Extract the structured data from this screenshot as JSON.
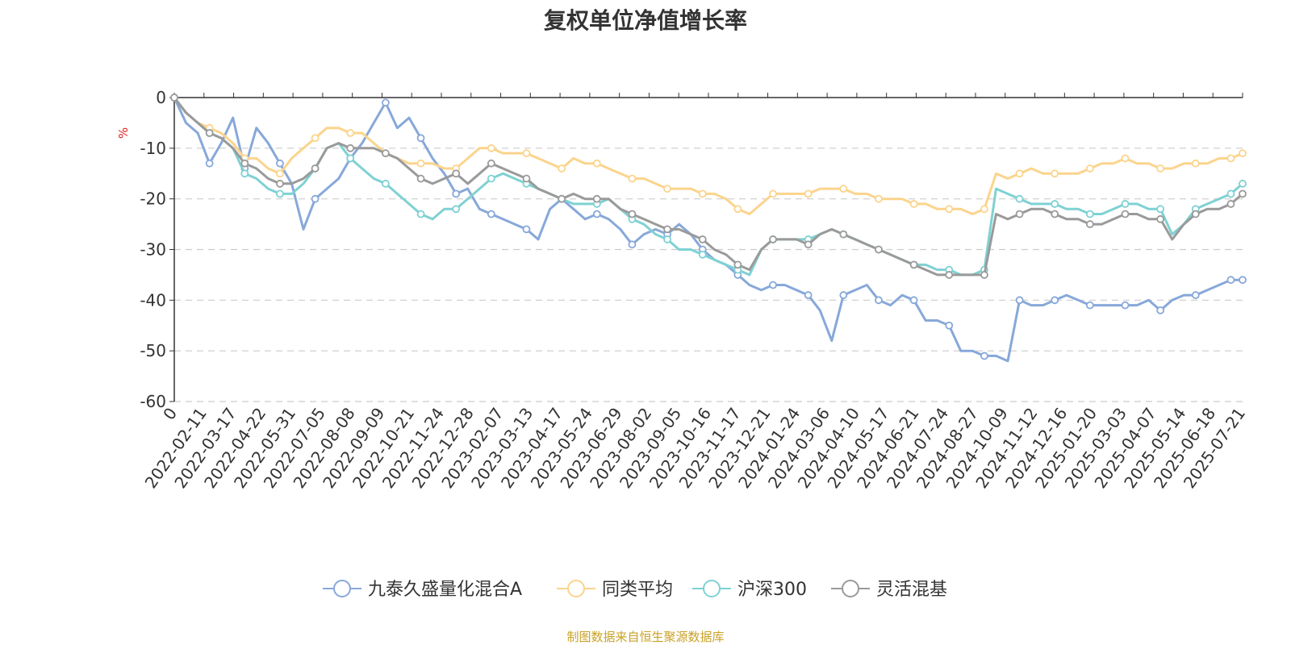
{
  "chart_data": {
    "type": "line",
    "title": "复权单位净值增长率",
    "ylabel": "%",
    "ylim": [
      -60,
      0
    ],
    "y_ticks": [
      0,
      -10,
      -20,
      -30,
      -40,
      -50,
      -60
    ],
    "x_tick_labels": [
      "0",
      "2022-02-11",
      "2022-03-17",
      "2022-04-22",
      "2022-05-31",
      "2022-07-05",
      "2022-08-08",
      "2022-09-09",
      "2022-10-21",
      "2022-11-24",
      "2022-12-28",
      "2023-02-07",
      "2023-03-13",
      "2023-04-17",
      "2023-05-24",
      "2023-06-29",
      "2023-08-02",
      "2023-09-05",
      "2023-10-16",
      "2023-11-17",
      "2023-12-21",
      "2024-01-24",
      "2024-03-06",
      "2024-04-10",
      "2024-05-17",
      "2024-06-21",
      "2024-07-24",
      "2024-08-27",
      "2024-10-09",
      "2024-11-12",
      "2024-12-16",
      "2025-01-20",
      "2025-03-03",
      "2025-04-07",
      "2025-05-14",
      "2025-06-18",
      "2025-07-21"
    ],
    "grid": true,
    "legend_position": "bottom",
    "series": [
      {
        "name": "九泰久盛量化混合A",
        "color": "#87a8d9",
        "values": [
          0,
          -5,
          -7,
          -13,
          -9,
          -4,
          -14,
          -6,
          -9,
          -13,
          -17,
          -26,
          -20,
          -18,
          -16,
          -12,
          -9,
          -5,
          -1,
          -6,
          -4,
          -8,
          -12,
          -15,
          -19,
          -18,
          -22,
          -23,
          -24,
          -25,
          -26,
          -28,
          -22,
          -20,
          -22,
          -24,
          -23,
          -24,
          -26,
          -29,
          -27,
          -26,
          -27,
          -25,
          -27,
          -30,
          -32,
          -33,
          -35,
          -37,
          -38,
          -37,
          -37,
          -38,
          -39,
          -42,
          -48,
          -39,
          -38,
          -37,
          -40,
          -41,
          -39,
          -40,
          -44,
          -44,
          -45,
          -50,
          -50,
          -51,
          -51,
          -52,
          -40,
          -41,
          -41,
          -40,
          -39,
          -40,
          -41,
          -41,
          -41,
          -41,
          -41,
          -40,
          -42,
          -40,
          -39,
          -39,
          -38,
          -37,
          -36,
          -36
        ]
      },
      {
        "name": "同类平均",
        "color": "#fbd48c",
        "values": [
          0,
          -3,
          -5,
          -6,
          -7,
          -9,
          -12,
          -12,
          -14,
          -15,
          -12,
          -10,
          -8,
          -6,
          -6,
          -7,
          -7,
          -9,
          -11,
          -12,
          -13,
          -13,
          -13,
          -14,
          -14,
          -12,
          -10,
          -10,
          -11,
          -11,
          -11,
          -12,
          -13,
          -14,
          -12,
          -13,
          -13,
          -14,
          -15,
          -16,
          -16,
          -17,
          -18,
          -18,
          -18,
          -19,
          -19,
          -20,
          -22,
          -23,
          -21,
          -19,
          -19,
          -19,
          -19,
          -18,
          -18,
          -18,
          -19,
          -19,
          -20,
          -20,
          -20,
          -21,
          -21,
          -22,
          -22,
          -22,
          -23,
          -22,
          -15,
          -16,
          -15,
          -14,
          -15,
          -15,
          -15,
          -15,
          -14,
          -13,
          -13,
          -12,
          -13,
          -13,
          -14,
          -14,
          -13,
          -13,
          -13,
          -12,
          -12,
          -11
        ]
      },
      {
        "name": "沪深300",
        "color": "#7fd1d3",
        "values": [
          0,
          -3,
          -5,
          -7,
          -8,
          -10,
          -15,
          -16,
          -18,
          -19,
          -19,
          -17,
          -14,
          -10,
          -9,
          -12,
          -14,
          -16,
          -17,
          -19,
          -21,
          -23,
          -24,
          -22,
          -22,
          -20,
          -18,
          -16,
          -15,
          -16,
          -17,
          -18,
          -19,
          -20,
          -21,
          -21,
          -21,
          -20,
          -22,
          -24,
          -25,
          -27,
          -28,
          -30,
          -30,
          -31,
          -32,
          -33,
          -34,
          -35,
          -30,
          -28,
          -28,
          -28,
          -28,
          -27,
          -26,
          -27,
          -28,
          -29,
          -30,
          -31,
          -32,
          -33,
          -33,
          -34,
          -34,
          -35,
          -35,
          -34,
          -18,
          -19,
          -20,
          -21,
          -21,
          -21,
          -22,
          -22,
          -23,
          -23,
          -22,
          -21,
          -21,
          -22,
          -22,
          -27,
          -25,
          -22,
          -21,
          -20,
          -19,
          -17
        ]
      },
      {
        "name": "灵活混基",
        "color": "#9a9a9a",
        "values": [
          0,
          -3,
          -5,
          -7,
          -8,
          -10,
          -13,
          -14,
          -16,
          -17,
          -17,
          -16,
          -14,
          -10,
          -9,
          -10,
          -10,
          -10,
          -11,
          -12,
          -14,
          -16,
          -17,
          -16,
          -15,
          -17,
          -15,
          -13,
          -14,
          -15,
          -16,
          -18,
          -19,
          -20,
          -19,
          -20,
          -20,
          -20,
          -22,
          -23,
          -24,
          -25,
          -26,
          -26,
          -27,
          -28,
          -30,
          -31,
          -33,
          -34,
          -30,
          -28,
          -28,
          -28,
          -29,
          -27,
          -26,
          -27,
          -28,
          -29,
          -30,
          -31,
          -32,
          -33,
          -34,
          -35,
          -35,
          -35,
          -35,
          -35,
          -23,
          -24,
          -23,
          -22,
          -22,
          -23,
          -24,
          -24,
          -25,
          -25,
          -24,
          -23,
          -23,
          -24,
          -24,
          -28,
          -25,
          -23,
          -22,
          -22,
          -21,
          -19
        ]
      }
    ]
  },
  "source_note": "制图数据来自恒生聚源数据库"
}
